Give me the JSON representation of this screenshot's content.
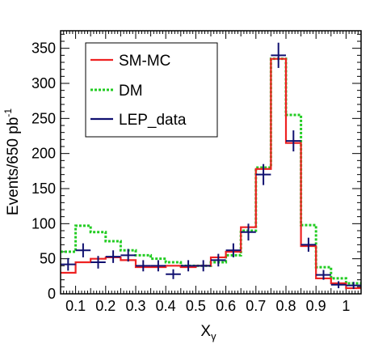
{
  "chart_data": {
    "type": "line",
    "xlabel": "X",
    "xlabel_sub": "γ",
    "ylabel": "Events/650 pb",
    "ylabel_sup": "-1",
    "xlim": [
      0.05,
      1.05
    ],
    "ylim": [
      0,
      375
    ],
    "xticks": [
      0.1,
      0.2,
      0.3,
      0.4,
      0.5,
      0.6,
      0.7,
      0.8,
      0.9,
      1.0
    ],
    "xtick_labels": [
      "0.1",
      "0.2",
      "0.3",
      "0.4",
      "0.5",
      "0.6",
      "0.7",
      "0.8",
      "0.9",
      "1"
    ],
    "yticks": [
      0,
      50,
      100,
      150,
      200,
      250,
      300,
      350
    ],
    "ytick_labels": [
      "0",
      "50",
      "100",
      "150",
      "200",
      "250",
      "300",
      "350"
    ],
    "bin_edges": [
      0.05,
      0.1,
      0.15,
      0.2,
      0.25,
      0.3,
      0.35,
      0.4,
      0.45,
      0.5,
      0.55,
      0.6,
      0.65,
      0.7,
      0.75,
      0.8,
      0.85,
      0.9,
      0.95,
      1.0,
      1.05
    ],
    "legend_position": "top-left",
    "series": [
      {
        "name": "SM-MC",
        "kind": "histogram",
        "color": "#ee2222",
        "values": [
          30,
          45,
          50,
          52,
          48,
          38,
          38,
          40,
          38,
          40,
          52,
          60,
          95,
          178,
          335,
          215,
          68,
          22,
          15,
          8
        ]
      },
      {
        "name": "DM",
        "kind": "histogram",
        "color": "#22cc22",
        "dashed": true,
        "values": [
          60,
          97,
          88,
          75,
          62,
          55,
          50,
          45,
          40,
          40,
          45,
          55,
          90,
          180,
          335,
          255,
          98,
          38,
          22,
          15
        ]
      },
      {
        "name": "LEP_data",
        "kind": "errorbar",
        "color": "#101070",
        "x": [
          0.075,
          0.125,
          0.175,
          0.225,
          0.275,
          0.325,
          0.375,
          0.425,
          0.475,
          0.525,
          0.575,
          0.625,
          0.675,
          0.725,
          0.775,
          0.825,
          0.875,
          0.925,
          0.975,
          1.025
        ],
        "y": [
          42,
          62,
          45,
          53,
          55,
          40,
          40,
          28,
          40,
          40,
          48,
          62,
          88,
          170,
          340,
          218,
          70,
          27,
          13,
          12
        ],
        "yerr": [
          9,
          10,
          9,
          9,
          9,
          8,
          8,
          7,
          8,
          8,
          9,
          10,
          12,
          15,
          18,
          15,
          10,
          7,
          5,
          5
        ]
      }
    ]
  }
}
